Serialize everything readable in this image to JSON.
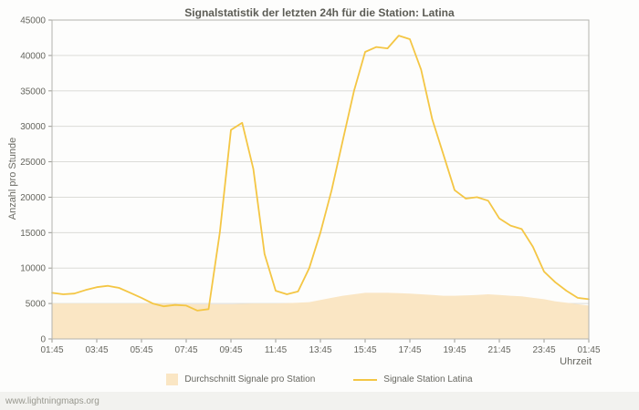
{
  "chart_data": {
    "type": "line",
    "title": "Signalstatistik der letzten 24h für die Station: Latina",
    "ylabel": "Anzahl pro Stunde",
    "xlabel": "Uhrzeit",
    "ylim": [
      0,
      45000
    ],
    "ytick_step": 5000,
    "grid": "horizontal",
    "legend_position": "bottom-center",
    "x_ticks": [
      "01:45",
      "03:45",
      "05:45",
      "07:45",
      "09:45",
      "11:45",
      "13:45",
      "15:45",
      "17:45",
      "19:45",
      "21:45",
      "23:45",
      "01:45"
    ],
    "sample_interval_minutes": 30,
    "colors": {
      "line": "#f4c644",
      "area": "#fae6c4"
    },
    "series": [
      {
        "name": "Durchschnitt Signale pro Station",
        "type": "area",
        "values": [
          5000,
          5000,
          5000,
          5000,
          5000,
          5000,
          5000,
          5000,
          5000,
          5000,
          4950,
          4950,
          4900,
          4900,
          4900,
          4900,
          4900,
          4950,
          5000,
          5000,
          5000,
          5050,
          5100,
          5200,
          5500,
          5800,
          6100,
          6300,
          6500,
          6500,
          6500,
          6450,
          6400,
          6300,
          6200,
          6100,
          6100,
          6150,
          6200,
          6300,
          6200,
          6100,
          6000,
          5800,
          5600,
          5300,
          5100,
          4900,
          4700
        ]
      },
      {
        "name": "Signale Station Latina",
        "type": "line",
        "values": [
          6500,
          6300,
          6400,
          6900,
          7300,
          7500,
          7200,
          6500,
          5800,
          5000,
          4600,
          4800,
          4700,
          4000,
          4200,
          15000,
          29500,
          30500,
          24000,
          12000,
          6800,
          6300,
          6700,
          10000,
          15000,
          21000,
          28000,
          35000,
          40500,
          41200,
          41000,
          42800,
          42300,
          38000,
          31000,
          26000,
          21000,
          19800,
          20000,
          19500,
          17000,
          16000,
          15500,
          13000,
          9500,
          8000,
          6800,
          5800,
          5600
        ]
      }
    ]
  },
  "watermark": "www.lightningmaps.org"
}
